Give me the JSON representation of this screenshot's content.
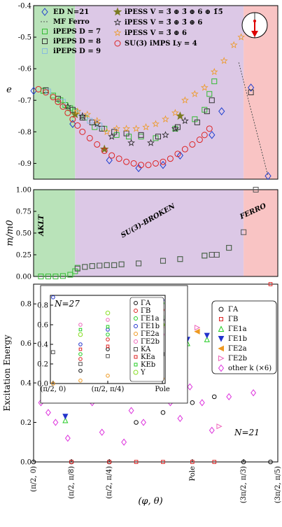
{
  "chart_data": [
    {
      "type": "scatter",
      "ylabel": "e",
      "xlim": [
        0,
        10
      ],
      "ylim": [
        -0.95,
        -0.4
      ],
      "yticks": [
        "-0.4",
        "-0.5",
        "-0.6",
        "-0.7",
        "-0.8",
        "-0.9"
      ],
      "ytick_values": [
        -0.4,
        -0.5,
        -0.6,
        -0.7,
        -0.8,
        -0.9
      ],
      "legend": [
        "ED N=21",
        "MF Ferro",
        "iPEPS D = 7",
        "iPEPS D = 8",
        "iPEPS D = 9",
        "iPESS V = 3̄ ⊕ 3̄ ⊕ 6 ⊕ 1̄5̄",
        "iPESS V = 3̄ ⊕ 3̄ ⊕ 6",
        "iPESS V = 3̄ ⊕ 6",
        "SU(3) iMPS Ly = 4"
      ],
      "regions": [
        {
          "from": 0,
          "to": 1.7,
          "color": "#b9e3b9"
        },
        {
          "from": 1.7,
          "to": 8.6,
          "color": "#dcc8e6"
        },
        {
          "from": 8.6,
          "to": 10,
          "color": "#f9c4c4"
        }
      ],
      "series": [
        {
          "name": "ED N=21",
          "marker": "diamond",
          "color": "#1f3fcf",
          "x": [
            0,
            1.6,
            3.1,
            4.3,
            5.3,
            6.0,
            7.3,
            7.7,
            8.9,
            9.6
          ],
          "y": [
            -0.67,
            -0.775,
            -0.89,
            -0.915,
            -0.905,
            -0.875,
            -0.81,
            -0.735,
            -0.66,
            -0.94
          ]
        },
        {
          "name": "MF Ferro",
          "marker": "line",
          "color": "#555555",
          "x": [
            8.4,
            8.8,
            9.2,
            9.6
          ],
          "y": [
            -0.58,
            -0.7,
            -0.82,
            -0.94
          ]
        },
        {
          "name": "iPEPS D = 7",
          "marker": "square",
          "color": "#33bb33",
          "x": [
            0.4,
            0.8,
            1.1,
            1.3,
            1.5,
            1.7,
            2.1,
            2.5,
            2.9,
            3.4,
            3.9,
            4.4,
            5.0,
            5.8,
            6.6,
            7.0,
            7.2,
            7.4
          ],
          "y": [
            -0.67,
            -0.685,
            -0.7,
            -0.715,
            -0.725,
            -0.735,
            -0.755,
            -0.785,
            -0.79,
            -0.81,
            -0.815,
            -0.815,
            -0.82,
            -0.79,
            -0.76,
            -0.73,
            -0.68,
            -0.64
          ]
        },
        {
          "name": "iPEPS D = 8",
          "marker": "square",
          "color": "#333333",
          "x": [
            0.5,
            1.0,
            1.6,
            2.0,
            2.4,
            2.8,
            3.3,
            3.8,
            4.4,
            5.1,
            5.9,
            6.7,
            7.1,
            7.3,
            8.9
          ],
          "y": [
            -0.668,
            -0.695,
            -0.73,
            -0.755,
            -0.77,
            -0.79,
            -0.8,
            -0.805,
            -0.81,
            -0.815,
            -0.785,
            -0.77,
            -0.735,
            -0.7,
            -0.675
          ]
        },
        {
          "name": "iPEPS D = 9",
          "marker": "square",
          "color": "#88bbdd",
          "x": [
            0.6,
            1.2,
            1.8,
            2.3,
            2.7
          ],
          "y": [
            -0.672,
            -0.705,
            -0.74,
            -0.765,
            -0.78
          ]
        },
        {
          "name": "iPESS V = 3̄ ⊕ 3̄ ⊕ 6 ⊕ 1̄5̄",
          "marker": "star",
          "color": "#7a7a22",
          "x": [
            1.7,
            2.9,
            6.0
          ],
          "y": [
            -0.745,
            -0.855,
            -0.75
          ]
        },
        {
          "name": "iPESS V = 3̄ ⊕ 3̄ ⊕ 6",
          "marker": "star-open",
          "color": "#222222",
          "x": [
            1.4,
            2.0,
            2.6,
            3.2,
            4.0,
            4.8,
            5.4,
            5.8,
            6.2
          ],
          "y": [
            -0.72,
            -0.75,
            -0.775,
            -0.815,
            -0.835,
            -0.835,
            -0.81,
            -0.79,
            -0.765
          ]
        },
        {
          "name": "iPESS V = 3̄ ⊕ 6",
          "marker": "star-open",
          "color": "#ee9922",
          "x": [
            1.8,
            2.2,
            2.6,
            3.0,
            3.4,
            3.8,
            4.2,
            4.6,
            5.0,
            5.4,
            5.8,
            6.2,
            6.6,
            7.0,
            7.4,
            7.8,
            8.2,
            8.5
          ],
          "y": [
            -0.735,
            -0.745,
            -0.765,
            -0.8,
            -0.79,
            -0.79,
            -0.79,
            -0.785,
            -0.775,
            -0.76,
            -0.74,
            -0.7,
            -0.68,
            -0.66,
            -0.61,
            -0.575,
            -0.525,
            -0.5
          ]
        },
        {
          "name": "SU(3) iMPS Ly = 4",
          "marker": "circle",
          "color": "#dd2222",
          "x": [
            0.2,
            0.5,
            0.8,
            1.0,
            1.2,
            1.4,
            1.6,
            1.8,
            2.0,
            2.3,
            2.6,
            2.9,
            3.2,
            3.5,
            3.8,
            4.1,
            4.4,
            4.7,
            5.0,
            5.3,
            5.6,
            5.9,
            6.2,
            6.5,
            6.8,
            7.0,
            7.2
          ],
          "y": [
            -0.665,
            -0.675,
            -0.69,
            -0.705,
            -0.72,
            -0.74,
            -0.76,
            -0.78,
            -0.8,
            -0.82,
            -0.84,
            -0.86,
            -0.875,
            -0.885,
            -0.895,
            -0.9,
            -0.905,
            -0.905,
            -0.9,
            -0.895,
            -0.885,
            -0.87,
            -0.855,
            -0.84,
            -0.825,
            -0.81,
            -0.79
          ]
        }
      ]
    },
    {
      "type": "scatter",
      "ylabel": "m/m0",
      "xlim": [
        0,
        10
      ],
      "ylim": [
        0,
        1.0
      ],
      "yticks": [
        "0.00",
        "0.25",
        "0.50",
        "0.75",
        "1.00"
      ],
      "ytick_values": [
        0,
        0.25,
        0.5,
        0.75,
        1.0
      ],
      "phase_labels": [
        "AKLT",
        "SU(3)-BROKEN",
        "FERRO"
      ],
      "regions": [
        {
          "from": 0,
          "to": 1.7,
          "color": "#b9e3b9"
        },
        {
          "from": 1.7,
          "to": 8.6,
          "color": "#dcc8e6"
        },
        {
          "from": 8.6,
          "to": 10,
          "color": "#f9c4c4"
        }
      ],
      "series": [
        {
          "name": "iPEPS D = 7",
          "marker": "square",
          "color": "#33bb33",
          "x": [
            0.3,
            0.6,
            0.9,
            1.2,
            1.5,
            1.7,
            1.8,
            2.1,
            2.4,
            2.7,
            3.0,
            3.3,
            3.6,
            4.3,
            5.3,
            6.0,
            7.0,
            7.3,
            7.5,
            8.0
          ],
          "y": [
            0,
            0,
            0,
            0.005,
            0.02,
            0.06,
            0.1,
            0.11,
            0.12,
            0.125,
            0.13,
            0.13,
            0.14,
            0.15,
            0.18,
            0.2,
            0.24,
            0.25,
            0.25,
            0.33
          ]
        },
        {
          "name": "iPEPS D = 8",
          "marker": "square",
          "color": "#555555",
          "x": [
            1.8,
            2.1,
            2.4,
            2.7,
            3.0,
            3.3,
            3.6,
            4.3,
            5.3,
            6.0,
            7.0,
            7.3,
            7.5,
            8.0,
            8.6,
            9.1
          ],
          "y": [
            0.09,
            0.11,
            0.12,
            0.125,
            0.13,
            0.13,
            0.14,
            0.15,
            0.18,
            0.2,
            0.24,
            0.25,
            0.25,
            0.33,
            0.51,
            1.0
          ]
        }
      ]
    },
    {
      "type": "scatter",
      "ylabel": "Excitation Energy",
      "xlabel": "(φ, θ)",
      "xlim": [
        0,
        10
      ],
      "ylim": [
        0,
        0.9
      ],
      "yticks": [
        "0.0",
        "0.2",
        "0.4",
        "0.6",
        "0.8"
      ],
      "ytick_values": [
        0,
        0.2,
        0.4,
        0.6,
        0.8
      ],
      "xticks": [
        "(π/2, 0)",
        "(π/2, π/8)",
        "(π/2, π/4)",
        "Pole",
        "(3π/2, π/3)",
        "(3π/2, π/5)"
      ],
      "xtick_values": [
        0,
        1.55,
        3.1,
        6.5,
        8.6,
        10
      ],
      "annotation": "N=21",
      "legend": [
        "ΓA",
        "ΓB",
        "ΓE1a",
        "ΓE1b",
        "ΓE2a",
        "ΓE2b",
        "other k (×6)"
      ],
      "series": [
        {
          "name": "ΓA",
          "marker": "circle-open",
          "color": "#111111",
          "x": [
            0,
            1.55,
            3.1,
            4.2,
            5.3,
            6.5,
            7.4,
            8.6,
            9.7
          ],
          "y": [
            0,
            0,
            0,
            0.2,
            0.25,
            0.3,
            0.33,
            0,
            0
          ]
        },
        {
          "name": "ΓB",
          "marker": "square-open",
          "color": "#dd2222",
          "x": [
            1.55,
            3.1,
            4.2,
            5.3,
            6.5,
            7.4,
            9.7
          ],
          "y": [
            0,
            0,
            0,
            0,
            0,
            0,
            0.9
          ]
        },
        {
          "name": "ΓE1a",
          "marker": "triangle-up",
          "color": "#22cc22",
          "x": [
            1.3,
            2.3,
            3.6,
            5.1,
            6.3,
            7.1
          ],
          "y": [
            0.21,
            0.32,
            0.43,
            0.5,
            0.6,
            0.62
          ]
        },
        {
          "name": "ΓE1b",
          "marker": "triangle-down",
          "color": "#2233cc",
          "x": [
            1.3,
            2.3,
            3.6,
            5.1,
            6.3,
            7.1
          ],
          "y": [
            0.23,
            0.34,
            0.45,
            0.52,
            0.62,
            0.64
          ]
        },
        {
          "name": "ΓE2a",
          "marker": "triangle-left",
          "color": "#ee9922",
          "x": [
            1.2,
            2.5,
            3.9,
            5.5,
            6.7
          ],
          "y": [
            0.44,
            0.5,
            0.55,
            0.6,
            0.66
          ]
        },
        {
          "name": "ΓE2b",
          "marker": "triangle-right",
          "color": "#ee66bb",
          "x": [
            1.2,
            2.5,
            3.9,
            5.5,
            6.7,
            7.6
          ],
          "y": [
            0.46,
            0.52,
            0.57,
            0.62,
            0.68,
            0.18
          ]
        },
        {
          "name": "other k (×6)",
          "marker": "diamond",
          "color": "#dd33dd",
          "x": [
            0.3,
            0.6,
            0.9,
            1.1,
            1.4,
            1.8,
            2.1,
            2.4,
            2.8,
            3.3,
            3.7,
            4.0,
            4.5,
            4.9,
            5.6,
            6.0,
            6.4,
            6.9,
            7.3,
            8.0,
            9.0
          ],
          "y": [
            0.3,
            0.25,
            0.2,
            0.33,
            0.12,
            0.36,
            0.4,
            0.3,
            0.15,
            0.34,
            0.1,
            0.26,
            0.2,
            0.35,
            0.3,
            0.22,
            0.38,
            0.3,
            0.16,
            0.33,
            0.35
          ]
        }
      ]
    },
    {
      "type": "scatter",
      "title": "N=27",
      "xticks": [
        "(π/2, 0)",
        "(π/2, π/4)",
        "Pole"
      ],
      "xtick_values": [
        0,
        4,
        8
      ],
      "yticks": [
        "0.0",
        "0.2",
        "0.4",
        "0.6",
        "0.8"
      ],
      "ytick_values": [
        0,
        0.2,
        0.4,
        0.6,
        0.8
      ],
      "xlim": [
        -0.2,
        8.2
      ],
      "ylim": [
        0,
        0.9
      ],
      "legend": [
        "ΓA",
        "ΓB",
        "ΓE1a",
        "ΓE1b",
        "ΓE2a",
        "ΓE2b",
        "KA",
        "KEa",
        "KEb",
        "Y"
      ],
      "series": [
        {
          "name": "ΓA",
          "marker": "circle-open",
          "color": "#111111",
          "x": [
            0,
            2,
            4,
            6,
            8
          ],
          "y": [
            0,
            0.13,
            0.35,
            0.55,
            0.65
          ]
        },
        {
          "name": "ΓB",
          "marker": "circle-open",
          "color": "#dd2222",
          "x": [
            2,
            4,
            6,
            8
          ],
          "y": [
            0.25,
            0.45,
            0.6,
            0.75
          ]
        },
        {
          "name": "ΓE1a",
          "marker": "circle-open",
          "color": "#22cc22",
          "x": [
            2,
            4,
            6,
            8
          ],
          "y": [
            0.3,
            0.5,
            0.65,
            0.82
          ]
        },
        {
          "name": "ΓE1b",
          "marker": "circle-open",
          "color": "#2233cc",
          "x": [
            0,
            2,
            4,
            6,
            8
          ],
          "y": [
            0.88,
            0.4,
            0.55,
            0.7,
            0.85
          ]
        },
        {
          "name": "ΓE2a",
          "marker": "circle-open",
          "color": "#ee9922",
          "x": [
            0,
            2,
            4,
            6,
            8
          ],
          "y": [
            0,
            0.03,
            0.08,
            0.15,
            0.05
          ]
        },
        {
          "name": "ΓE2b",
          "marker": "circle-open",
          "color": "#ee66bb",
          "x": [
            2,
            4,
            6,
            8
          ],
          "y": [
            0.6,
            0.65,
            0.72,
            0.5
          ]
        },
        {
          "name": "KA",
          "marker": "square",
          "color": "#555555",
          "x": [
            0,
            2,
            4,
            6,
            8
          ],
          "y": [
            0.32,
            0.2,
            0.28,
            0.4,
            0.3
          ]
        },
        {
          "name": "KEa",
          "marker": "square-open",
          "color": "#dd2222",
          "x": [
            2,
            4,
            6,
            8
          ],
          "y": [
            0.35,
            0.38,
            0.45,
            0.58
          ]
        },
        {
          "name": "KEb",
          "marker": "square-open",
          "color": "#22cc22",
          "x": [
            2,
            4,
            6,
            8
          ],
          "y": [
            0.55,
            0.58,
            0.62,
            0.68
          ]
        },
        {
          "name": "Y",
          "marker": "circle",
          "color": "#88dd22",
          "x": [
            2,
            4,
            6,
            8
          ],
          "y": [
            0.5,
            0.72,
            0.78,
            0.6
          ]
        }
      ]
    }
  ]
}
